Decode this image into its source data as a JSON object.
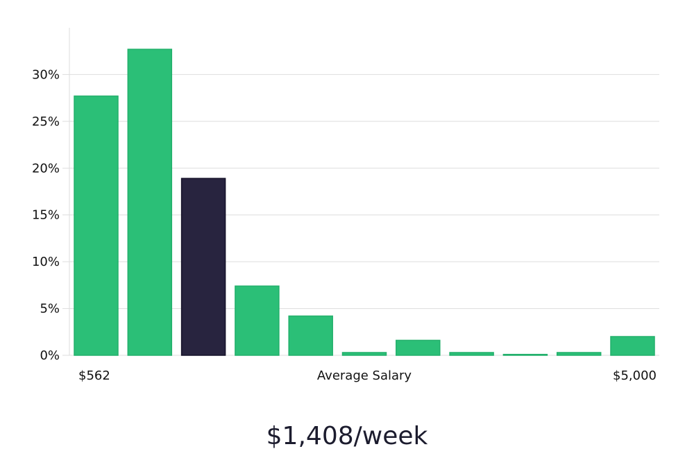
{
  "chart_data": {
    "type": "bar",
    "values": [
      27.7,
      32.7,
      18.9,
      7.4,
      4.2,
      0.3,
      1.6,
      0.3,
      0.1,
      0.3,
      2.0
    ],
    "highlight_index": 2,
    "ylim": [
      0,
      35
    ],
    "yticks": [
      0,
      5,
      10,
      15,
      20,
      25,
      30
    ],
    "ytick_labels": [
      "0%",
      "5%",
      "10%",
      "15%",
      "20%",
      "25%",
      "30%"
    ],
    "xlabel": "Average Salary",
    "x_start_label": "$562",
    "x_end_label": "$5,000",
    "grid": true,
    "colors": {
      "bar": "#2bbf77",
      "highlight": "#28243f",
      "grid": "#dddddd"
    }
  },
  "headline": "$1,408/week"
}
